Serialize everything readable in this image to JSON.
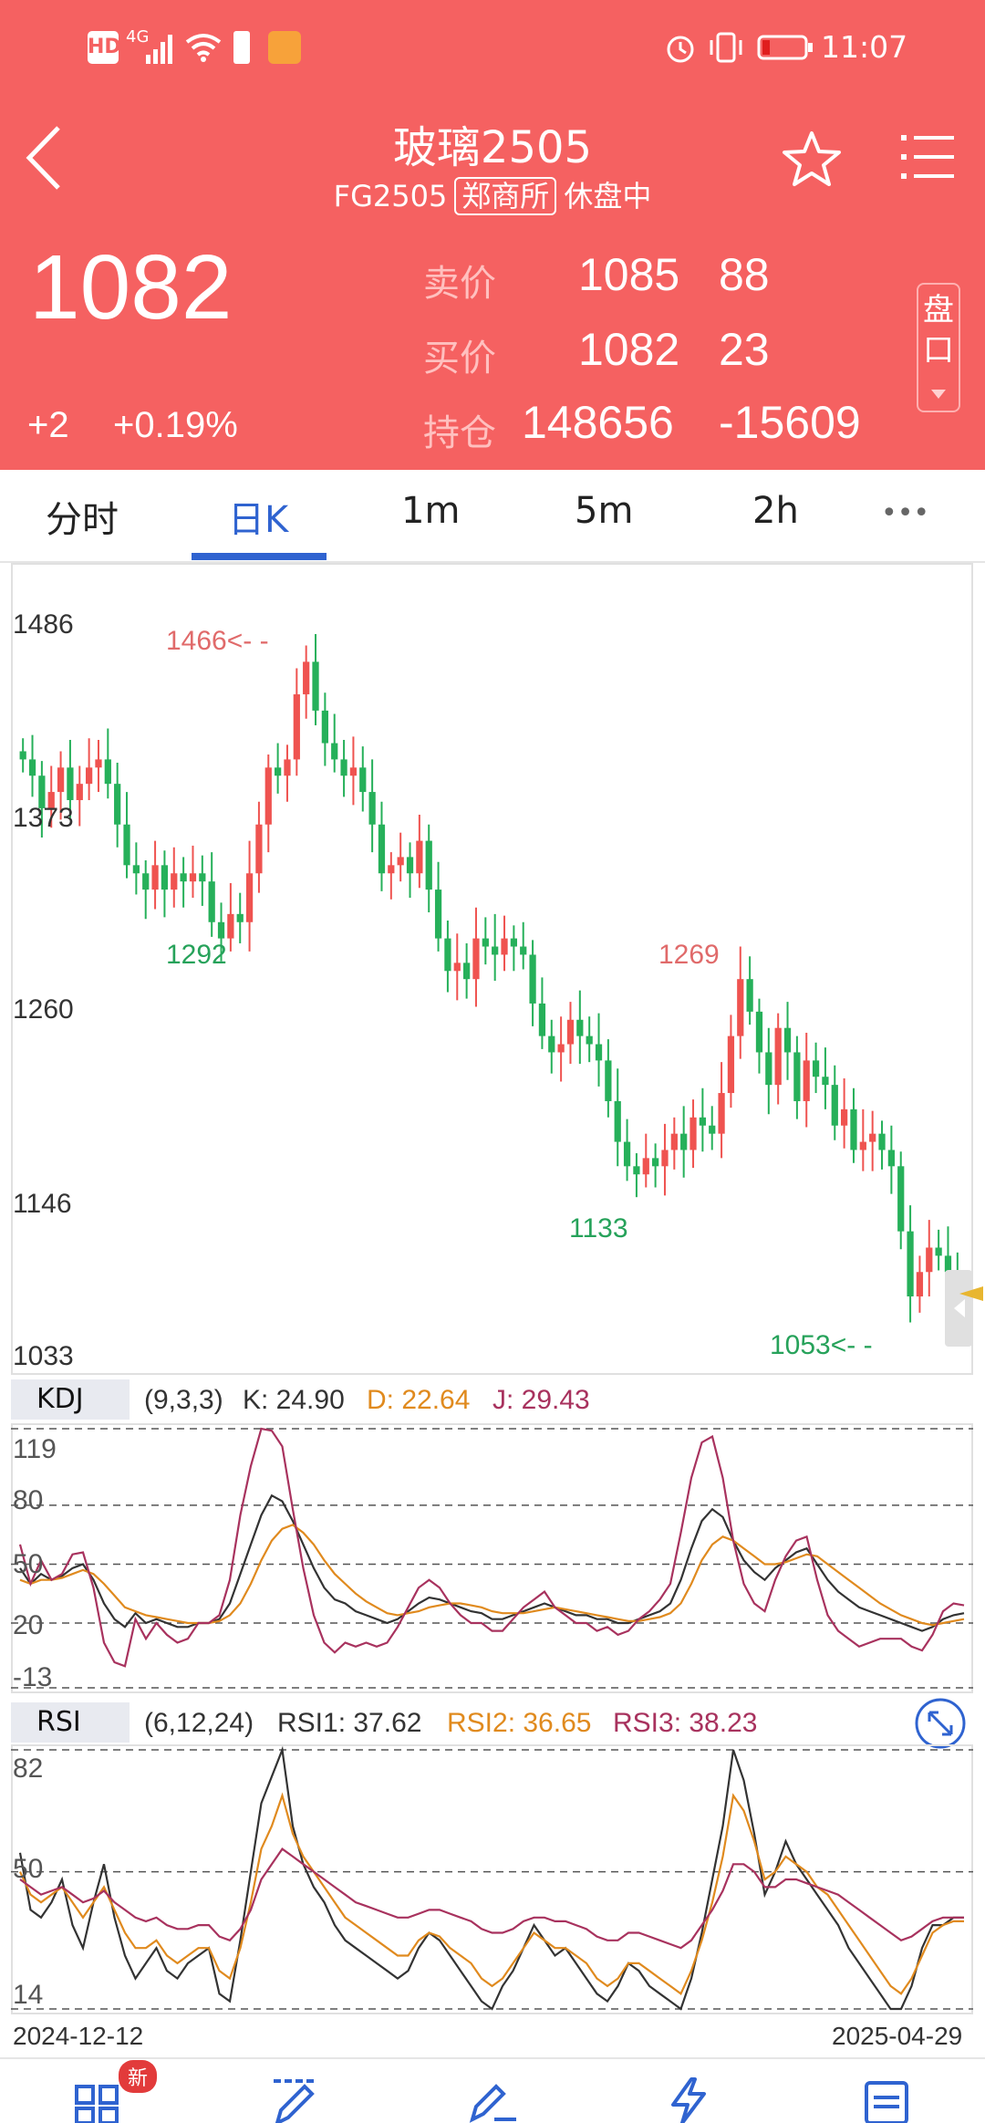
{
  "status_bar": {
    "time": "11:07",
    "network": "4G",
    "hd": "HD"
  },
  "header": {
    "title": "玻璃2505",
    "code": "FG2505",
    "exchange": "郑商所",
    "session_status": "休盘中",
    "last_price": "1082",
    "change": "+2",
    "change_pct": "+0.19%",
    "ask_label": "卖价",
    "ask_price": "1085",
    "ask_vol": "88",
    "bid_label": "买价",
    "bid_price": "1082",
    "bid_vol": "23",
    "oi_label": "持仓",
    "open_interest": "148656",
    "oi_change": "-15609",
    "orderbook_label_1": "盘",
    "orderbook_label_2": "口"
  },
  "tabs": [
    {
      "label": "分时",
      "active": false
    },
    {
      "label": "日K",
      "active": true
    },
    {
      "label": "1m",
      "active": false
    },
    {
      "label": "5m",
      "active": false
    },
    {
      "label": "2h",
      "active": false
    },
    {
      "label": "•••",
      "active": false
    }
  ],
  "colors": {
    "header_red": "#f56161",
    "up_red": "#ef5350",
    "down_green": "#26b05a",
    "accent_blue": "#2f63d0",
    "k_line": "#333333",
    "d_line": "#e08a1e",
    "j_line": "#a8325e"
  },
  "chart_data": [
    {
      "type": "candlestick",
      "y_ticks": [
        "1486",
        "1373",
        "1260",
        "1146",
        "1033"
      ],
      "ylim": [
        1033,
        1486
      ],
      "annotations": {
        "high": "1466<- -",
        "low": "1053<- -",
        "mark_1292": "1292",
        "mark_1269": "1269",
        "mark_1133": "1133"
      },
      "x_start": "2024-12-12",
      "x_end": "2025-04-29",
      "closes": [
        1400,
        1390,
        1370,
        1380,
        1395,
        1375,
        1385,
        1395,
        1400,
        1385,
        1360,
        1335,
        1330,
        1320,
        1335,
        1320,
        1330,
        1325,
        1330,
        1325,
        1300,
        1290,
        1305,
        1300,
        1330,
        1360,
        1395,
        1390,
        1400,
        1440,
        1460,
        1430,
        1410,
        1400,
        1390,
        1395,
        1380,
        1360,
        1330,
        1335,
        1340,
        1330,
        1350,
        1320,
        1290,
        1270,
        1275,
        1265,
        1290,
        1285,
        1280,
        1290,
        1285,
        1280,
        1250,
        1230,
        1220,
        1225,
        1240,
        1230,
        1225,
        1215,
        1190,
        1165,
        1150,
        1145,
        1155,
        1150,
        1160,
        1170,
        1160,
        1180,
        1175,
        1170,
        1195,
        1230,
        1265,
        1245,
        1220,
        1200,
        1235,
        1220,
        1190,
        1215,
        1205,
        1200,
        1175,
        1185,
        1160,
        1165,
        1170,
        1160,
        1150,
        1110,
        1070,
        1085,
        1100,
        1095,
        1085,
        1082
      ],
      "rising_pattern": "mixed"
    },
    {
      "type": "line",
      "name": "KDJ",
      "params": "(9,3,3)",
      "k_label": "K: 24.90",
      "d_label": "D: 22.64",
      "j_label": "J: 29.43",
      "y_ticks": [
        "119",
        "80",
        "50",
        "20",
        "-13"
      ],
      "ylim": [
        -13,
        119
      ],
      "K": [
        48,
        40,
        45,
        42,
        44,
        48,
        50,
        42,
        30,
        22,
        18,
        25,
        20,
        22,
        20,
        18,
        18,
        20,
        20,
        22,
        30,
        45,
        60,
        75,
        85,
        82,
        72,
        60,
        48,
        38,
        32,
        30,
        26,
        24,
        22,
        20,
        22,
        26,
        30,
        33,
        32,
        30,
        28,
        26,
        25,
        22,
        22,
        24,
        26,
        28,
        30,
        28,
        26,
        24,
        24,
        22,
        22,
        20,
        20,
        22,
        24,
        26,
        30,
        42,
        58,
        72,
        78,
        74,
        62,
        52,
        46,
        42,
        48,
        52,
        56,
        58,
        50,
        42,
        36,
        32,
        28,
        26,
        24,
        22,
        20,
        18,
        16,
        18,
        22,
        24,
        25
      ],
      "D": [
        42,
        40,
        42,
        42,
        43,
        45,
        47,
        45,
        40,
        34,
        28,
        26,
        24,
        23,
        22,
        21,
        20,
        20,
        20,
        21,
        24,
        30,
        40,
        52,
        62,
        68,
        70,
        66,
        60,
        52,
        45,
        40,
        35,
        31,
        28,
        25,
        24,
        25,
        26,
        28,
        29,
        30,
        30,
        29,
        28,
        26,
        25,
        25,
        25,
        26,
        27,
        28,
        27,
        26,
        25,
        24,
        23,
        22,
        21,
        21,
        22,
        23,
        25,
        30,
        40,
        52,
        60,
        64,
        62,
        58,
        54,
        50,
        50,
        51,
        53,
        55,
        54,
        50,
        46,
        42,
        38,
        34,
        30,
        27,
        24,
        22,
        20,
        19,
        20,
        21,
        22
      ],
      "J": [
        60,
        40,
        52,
        42,
        45,
        55,
        56,
        38,
        10,
        0,
        -2,
        22,
        12,
        20,
        14,
        10,
        12,
        20,
        20,
        24,
        42,
        75,
        100,
        119,
        118,
        110,
        78,
        48,
        24,
        10,
        5,
        10,
        8,
        10,
        8,
        10,
        18,
        28,
        38,
        42,
        38,
        30,
        24,
        20,
        20,
        16,
        16,
        22,
        28,
        32,
        36,
        28,
        24,
        20,
        20,
        16,
        18,
        14,
        16,
        22,
        26,
        32,
        40,
        66,
        94,
        112,
        115,
        94,
        62,
        40,
        30,
        26,
        42,
        54,
        62,
        64,
        42,
        24,
        16,
        12,
        8,
        10,
        12,
        12,
        12,
        8,
        6,
        14,
        26,
        30,
        29
      ]
    },
    {
      "type": "line",
      "name": "RSI",
      "params": "(6,12,24)",
      "rsi1_label": "RSI1: 37.62",
      "rsi2_label": "RSI2: 36.65",
      "rsi3_label": "RSI3: 38.23",
      "y_ticks": [
        "82",
        "50",
        "14"
      ],
      "ylim": [
        14,
        82
      ],
      "RSI1": [
        55,
        40,
        38,
        42,
        48,
        36,
        30,
        42,
        52,
        38,
        28,
        22,
        26,
        30,
        24,
        22,
        26,
        28,
        30,
        18,
        16,
        32,
        50,
        68,
        75,
        84,
        62,
        52,
        46,
        42,
        36,
        32,
        30,
        28,
        26,
        24,
        22,
        24,
        30,
        34,
        32,
        28,
        24,
        20,
        16,
        14,
        20,
        24,
        30,
        36,
        32,
        28,
        30,
        26,
        22,
        18,
        16,
        20,
        26,
        24,
        20,
        18,
        16,
        14,
        22,
        34,
        48,
        62,
        82,
        74,
        60,
        44,
        50,
        58,
        52,
        48,
        44,
        40,
        36,
        30,
        26,
        22,
        18,
        14,
        12,
        20,
        30,
        36,
        36,
        38,
        38
      ],
      "RSI2": [
        50,
        44,
        42,
        44,
        46,
        42,
        38,
        42,
        46,
        40,
        34,
        30,
        30,
        32,
        28,
        26,
        28,
        30,
        30,
        24,
        22,
        30,
        42,
        56,
        62,
        70,
        60,
        54,
        50,
        46,
        42,
        38,
        36,
        34,
        32,
        30,
        28,
        28,
        32,
        34,
        33,
        30,
        28,
        26,
        22,
        20,
        22,
        26,
        30,
        34,
        32,
        30,
        30,
        28,
        26,
        22,
        20,
        22,
        26,
        26,
        24,
        22,
        20,
        18,
        24,
        32,
        42,
        54,
        70,
        66,
        58,
        48,
        50,
        54,
        52,
        50,
        46,
        44,
        40,
        36,
        32,
        28,
        24,
        20,
        18,
        22,
        28,
        34,
        36,
        37,
        37
      ],
      "RSI3": [
        48,
        46,
        44,
        45,
        46,
        44,
        42,
        43,
        45,
        42,
        40,
        38,
        37,
        38,
        36,
        35,
        35,
        36,
        36,
        33,
        32,
        35,
        40,
        48,
        52,
        56,
        54,
        52,
        50,
        48,
        46,
        44,
        42,
        41,
        40,
        39,
        38,
        38,
        39,
        40,
        40,
        39,
        38,
        37,
        35,
        34,
        34,
        35,
        37,
        38,
        38,
        37,
        37,
        36,
        35,
        33,
        32,
        32,
        34,
        34,
        33,
        32,
        31,
        30,
        32,
        36,
        40,
        45,
        52,
        52,
        50,
        46,
        46,
        48,
        48,
        47,
        46,
        45,
        44,
        42,
        40,
        38,
        36,
        34,
        32,
        33,
        35,
        37,
        38,
        38,
        38
      ]
    }
  ],
  "bottom_nav": {
    "badge": "新"
  }
}
